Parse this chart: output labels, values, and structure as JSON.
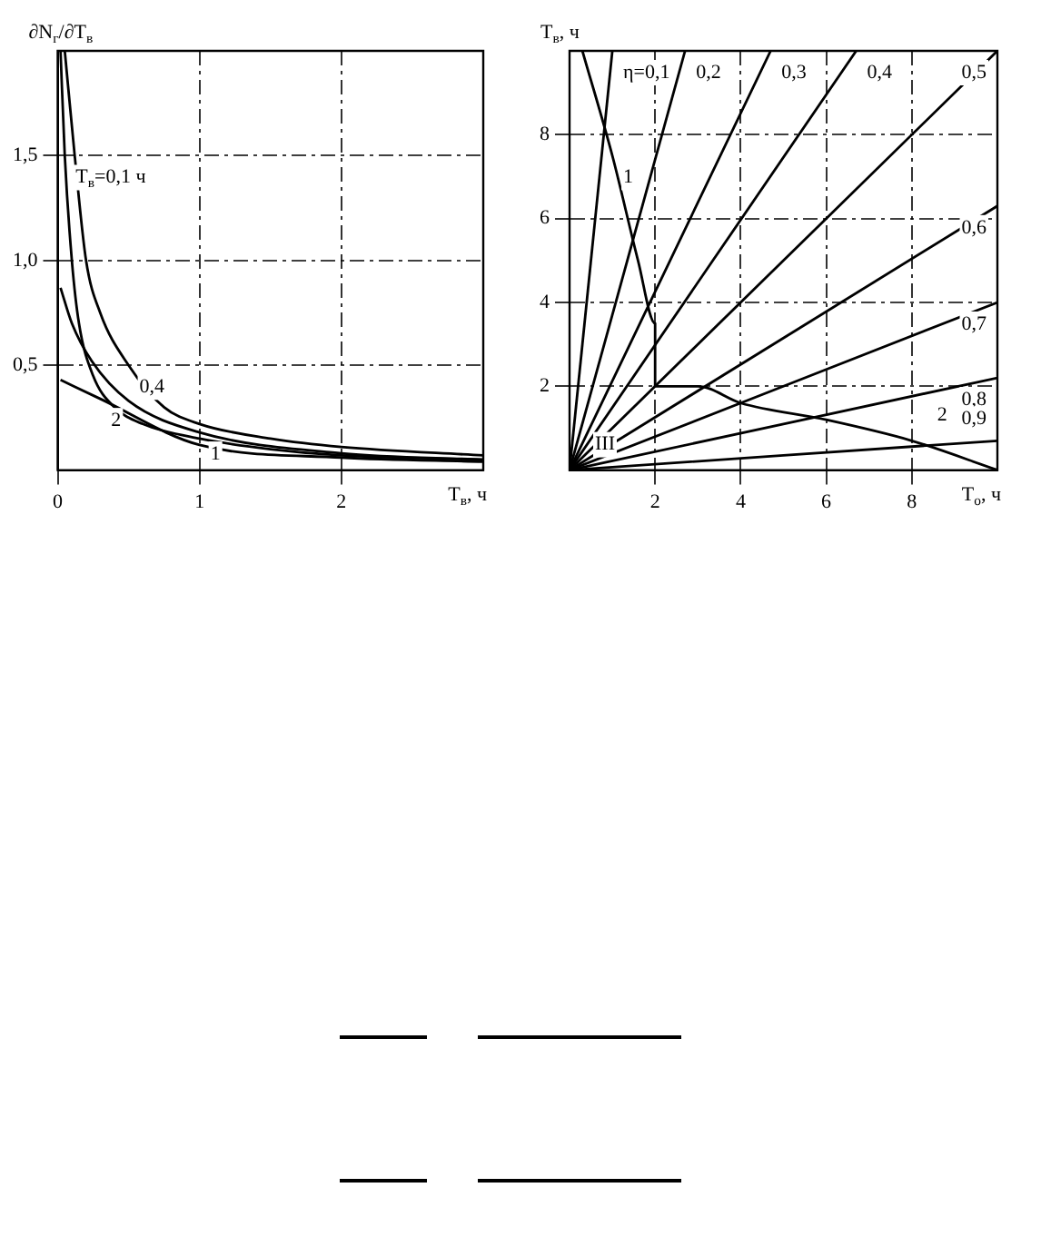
{
  "chart_data": [
    {
      "type": "line",
      "xlabel": "T$_{в}$, ч",
      "ylabel": "∂N$_{г}$/∂T$_{в}$",
      "xlim": [
        0,
        3
      ],
      "ylim": [
        0,
        2
      ],
      "xticks": [
        0,
        1,
        2
      ],
      "yticks": [
        {
          "value": 0.5,
          "label": "0,5"
        },
        {
          "value": 1,
          "label": "1,0"
        },
        {
          "value": 1.5,
          "label": "1,5"
        }
      ],
      "grid": true,
      "marker": "none",
      "series": [
        {
          "color": "#000000",
          "x": [
            0.02,
            0.05,
            0.1,
            0.15,
            0.25,
            0.4,
            0.6,
            1,
            1.5,
            2,
            3
          ],
          "values": [
            2,
            1.5,
            1,
            0.7,
            0.45,
            0.3,
            0.22,
            0.15,
            0.1,
            0.07,
            0.05
          ]
        },
        {
          "color": "#000000",
          "x": [
            0.05,
            0.12,
            0.2,
            0.3,
            0.5,
            0.75,
            1,
            1.5,
            2,
            3
          ],
          "values": [
            2,
            1.5,
            1,
            0.75,
            0.5,
            0.3,
            0.22,
            0.15,
            0.11,
            0.07
          ]
        },
        {
          "color": "#000000",
          "x": [
            0.02,
            0.1,
            0.24,
            0.5,
            1,
            2,
            3
          ],
          "values": [
            0.87,
            0.7,
            0.52,
            0.33,
            0.18,
            0.08,
            0.05
          ]
        },
        {
          "color": "#000000",
          "x": [
            0.02,
            0.3,
            1,
            2,
            3
          ],
          "values": [
            0.43,
            0.34,
            0.12,
            0.06,
            0.04
          ]
        }
      ],
      "annotations": [
        {
          "text": "T$_{в}$=0,1 ч",
          "x": 0.05,
          "y": 1.5
        },
        {
          "text": "0,4",
          "x": 0.5,
          "y": 0.5
        },
        {
          "text": "1",
          "x": 1,
          "y": 0.18
        },
        {
          "text": "2",
          "x": 0.3,
          "y": 0.34
        }
      ]
    },
    {
      "type": "line",
      "xlabel": "T$_{о}$, ч",
      "ylabel": "T$_{в}$, ч",
      "xlim": [
        0,
        10
      ],
      "ylim": [
        0,
        10
      ],
      "xticks": [
        2,
        4,
        6,
        8
      ],
      "yticks": [
        2,
        4,
        6,
        8
      ],
      "grid": true,
      "marker": "none",
      "series": [
        {
          "color": "#000000",
          "x": [
            0,
            1
          ],
          "values": [
            0,
            10
          ]
        },
        {
          "color": "#000000",
          "x": [
            0,
            2.7
          ],
          "values": [
            0,
            10
          ]
        },
        {
          "color": "#000000",
          "x": [
            0,
            4.7
          ],
          "values": [
            0,
            10
          ]
        },
        {
          "color": "#000000",
          "x": [
            0,
            6.7
          ],
          "values": [
            0,
            10
          ]
        },
        {
          "color": "#000000",
          "x": [
            0,
            10
          ],
          "values": [
            0,
            10
          ]
        },
        {
          "color": "#000000",
          "x": [
            0,
            10
          ],
          "values": [
            0,
            6.3
          ]
        },
        {
          "color": "#000000",
          "x": [
            0,
            10
          ],
          "values": [
            0,
            4
          ]
        },
        {
          "color": "#000000",
          "x": [
            0,
            10
          ],
          "values": [
            0,
            2.2
          ]
        },
        {
          "color": "#000000",
          "x": [
            0,
            10
          ],
          "values": [
            0,
            0.7
          ]
        },
        {
          "color": "#000000",
          "x": [
            0.3,
            1,
            1.6,
            2,
            2
          ],
          "values": [
            10,
            7.5,
            5,
            3.5,
            2
          ]
        },
        {
          "color": "#000000",
          "x": [
            2,
            3,
            4,
            6,
            8,
            10
          ],
          "values": [
            2,
            2,
            1.6,
            1.2,
            0.7,
            0
          ]
        }
      ],
      "annotations": [
        {
          "text": "η=0,1",
          "x": 1,
          "y": 10
        },
        {
          "text": "0,2",
          "x": 2.7,
          "y": 10
        },
        {
          "text": "0,3",
          "x": 4.7,
          "y": 10
        },
        {
          "text": "0,4",
          "x": 6.7,
          "y": 10
        },
        {
          "text": "0,5",
          "x": 10,
          "y": 10
        },
        {
          "text": "0,6",
          "x": 10,
          "y": 6.3
        },
        {
          "text": "0,7",
          "x": 10,
          "y": 4
        },
        {
          "text": "0,8",
          "x": 10,
          "y": 2.2
        },
        {
          "text": "0,9",
          "x": 10,
          "y": 0.7
        },
        {
          "text": "1",
          "x": 1,
          "y": 7.5
        },
        {
          "text": "2",
          "x": 8,
          "y": 0.7
        },
        {
          "text": "III",
          "x": 0,
          "y": 0
        }
      ]
    }
  ]
}
